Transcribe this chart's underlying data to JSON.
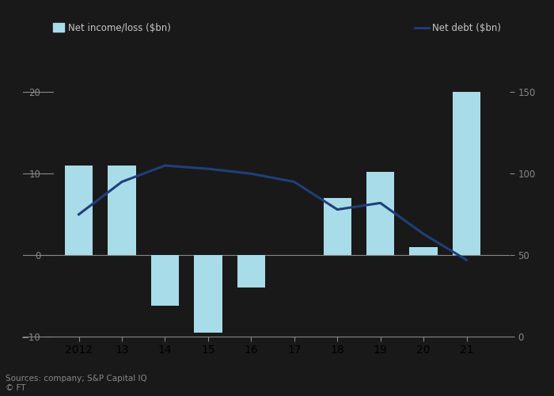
{
  "years": [
    2012,
    2013,
    2014,
    2015,
    2016,
    2017,
    2018,
    2019,
    2020,
    2021
  ],
  "net_income": [
    11,
    11,
    -6.2,
    -9.5,
    -4.0,
    0,
    7.0,
    10.2,
    1.0,
    20.0
  ],
  "net_debt": [
    75,
    95,
    105,
    103,
    100,
    95,
    78,
    82,
    63,
    47
  ],
  "bar_color": "#a8dce8",
  "line_color": "#1f3f7a",
  "ylim_left": [
    -10,
    25
  ],
  "ylim_right": [
    0,
    175
  ],
  "yticks_left": [
    -10,
    0,
    10,
    20
  ],
  "yticks_right": [
    0,
    50,
    100,
    150
  ],
  "xticklabels": [
    "2012",
    "13",
    "14",
    "15",
    "16",
    "17",
    "18",
    "19",
    "20",
    "21"
  ],
  "ylabel_left": "Net income/loss ($bn)",
  "ylabel_right": "Net debt ($bn)",
  "legend_bar_label": "Net income/loss ($bn)",
  "legend_line_label": "Net debt ($bn)",
  "source_text": "Sources: company; S&P Capital IQ\n© FT",
  "bg_color": "#191919",
  "text_color": "#c8c8c8",
  "tick_color": "#888888",
  "axis_color": "#888888",
  "bar_width": 0.65,
  "bar_2017_zero": true
}
